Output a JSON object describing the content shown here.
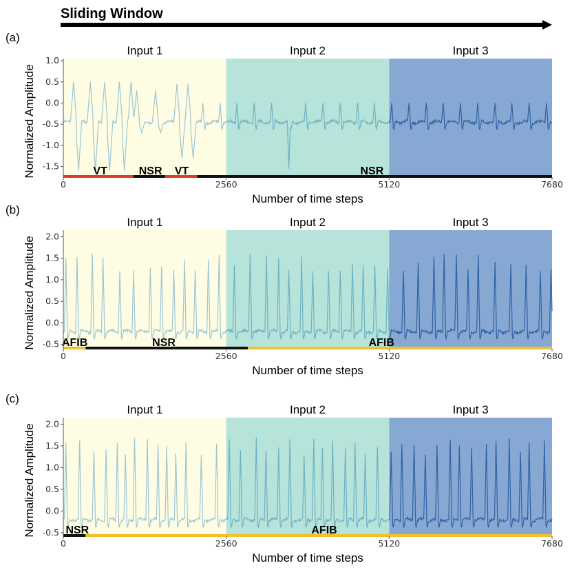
{
  "title": "Sliding Window",
  "colors": {
    "input1_bg": "#fefde4",
    "input2_bg": "#b6e3da",
    "input3_bg": "#86a8d2",
    "trace1": "#9cc6d4",
    "trace2": "#6fb2c2",
    "trace3": "#2f62a6",
    "vt": "#e03a2e",
    "nsr": "#111111",
    "afib": "#f0c030"
  },
  "chart_data": [
    {
      "type": "line",
      "panel_label": "(a)",
      "input_labels": [
        "Input 1",
        "Input 2",
        "Input 3"
      ],
      "xlabel": "Number of time steps",
      "ylabel": "Normalized Amplitude",
      "xlim": [
        0,
        7680
      ],
      "ylim": [
        -1.75,
        1.05
      ],
      "xticks": [
        0,
        2560,
        5120,
        7680
      ],
      "xtick_labels": [
        "0",
        "2560",
        "5120",
        "7680"
      ],
      "yticks": [
        -1.5,
        -1.0,
        -0.5,
        0.0,
        0.5,
        1.0
      ],
      "ytick_labels": [
        "-1.5",
        "-1.0",
        "-0.5",
        "0.0",
        "0.5",
        "1.0"
      ],
      "ecg": {
        "baseline": -0.45,
        "segments": [
          {
            "from": 0,
            "to": 1100,
            "rhythm": "VT",
            "peaks": [
              160,
              420,
              650,
              880,
              1060
            ],
            "peak_high": 0.5,
            "trough": -1.6
          },
          {
            "from": 1100,
            "to": 1600,
            "rhythm": "NSR",
            "peaks": [
              1150,
              1450
            ],
            "peak_high": 0.3,
            "trough": -0.7
          },
          {
            "from": 1600,
            "to": 2150,
            "rhythm": "VT",
            "peaks": [
              1780,
              1960
            ],
            "peak_high": 0.45,
            "trough": -1.3
          },
          {
            "from": 2150,
            "to": 7680,
            "rhythm": "NSR",
            "rate": 270,
            "peak_high": 0.0,
            "dip_at": 3540,
            "dip": -1.55
          }
        ]
      },
      "rhythm_segments": [
        {
          "label": "VT",
          "from": 0,
          "to": 1100
        },
        {
          "label": "NSR",
          "from": 1100,
          "to": 1600
        },
        {
          "label": "VT",
          "from": 1600,
          "to": 2100
        },
        {
          "label": "NSR",
          "from": 2100,
          "to": 7680
        }
      ],
      "rhythm_labels": [
        {
          "text": "VT",
          "at": 580
        },
        {
          "text": "NSR",
          "at": 1370
        },
        {
          "text": "VT",
          "at": 1860
        },
        {
          "text": "NSR",
          "at": 4850
        }
      ]
    },
    {
      "type": "line",
      "panel_label": "(b)",
      "input_labels": [
        "Input 1",
        "Input 2",
        "Input 3"
      ],
      "xlabel": "Number of time steps",
      "ylabel": "Normalized Amplitude",
      "xlim": [
        0,
        7680
      ],
      "ylim": [
        -0.6,
        2.15
      ],
      "xticks": [
        0,
        2560,
        5120,
        7680
      ],
      "xtick_labels": [
        "0",
        "2560",
        "5120",
        "7680"
      ],
      "yticks": [
        -0.5,
        0.0,
        0.5,
        1.0,
        1.5,
        2.0
      ],
      "ytick_labels": [
        "-0.5",
        "0.0",
        "0.5",
        "1.0",
        "1.5",
        "2.0"
      ],
      "ecg": {
        "baseline": -0.2,
        "segments": [
          {
            "from": 0,
            "to": 7680,
            "rhythm": "mixed",
            "rate": 210,
            "peak_high": 1.6
          }
        ]
      },
      "rhythm_segments": [
        {
          "label": "AFIB",
          "from": 0,
          "to": 350
        },
        {
          "label": "NSR",
          "from": 350,
          "to": 2900
        },
        {
          "label": "AFIB",
          "from": 2900,
          "to": 7680
        }
      ],
      "rhythm_labels": [
        {
          "text": "AFIB",
          "at": 180
        },
        {
          "text": "NSR",
          "at": 1580
        },
        {
          "text": "AFIB",
          "at": 5000
        }
      ]
    },
    {
      "type": "line",
      "panel_label": "(c)",
      "input_labels": [
        "Input 1",
        "Input 2",
        "Input 3"
      ],
      "xlabel": "Number of time steps",
      "ylabel": "Normalized Amplitude",
      "xlim": [
        0,
        7680
      ],
      "ylim": [
        -0.58,
        2.15
      ],
      "xticks": [
        0,
        2560,
        5120,
        7680
      ],
      "xtick_labels": [
        "0",
        "2560",
        "5120",
        "7680"
      ],
      "yticks": [
        -0.5,
        0.0,
        0.5,
        1.0,
        1.5,
        2.0
      ],
      "ytick_labels": [
        "-0.5",
        "0.0",
        "0.5",
        "1.0",
        "1.5",
        "2.0"
      ],
      "ecg": {
        "baseline": -0.2,
        "segments": [
          {
            "from": 0,
            "to": 7680,
            "rhythm": "AFIB",
            "rate": 190,
            "peak_high": 1.7
          }
        ]
      },
      "rhythm_segments": [
        {
          "label": "NSR",
          "from": 0,
          "to": 350
        },
        {
          "label": "AFIB",
          "from": 350,
          "to": 7680
        }
      ],
      "rhythm_labels": [
        {
          "text": "NSR",
          "at": 220
        },
        {
          "text": "AFIB",
          "at": 4100
        }
      ]
    }
  ]
}
